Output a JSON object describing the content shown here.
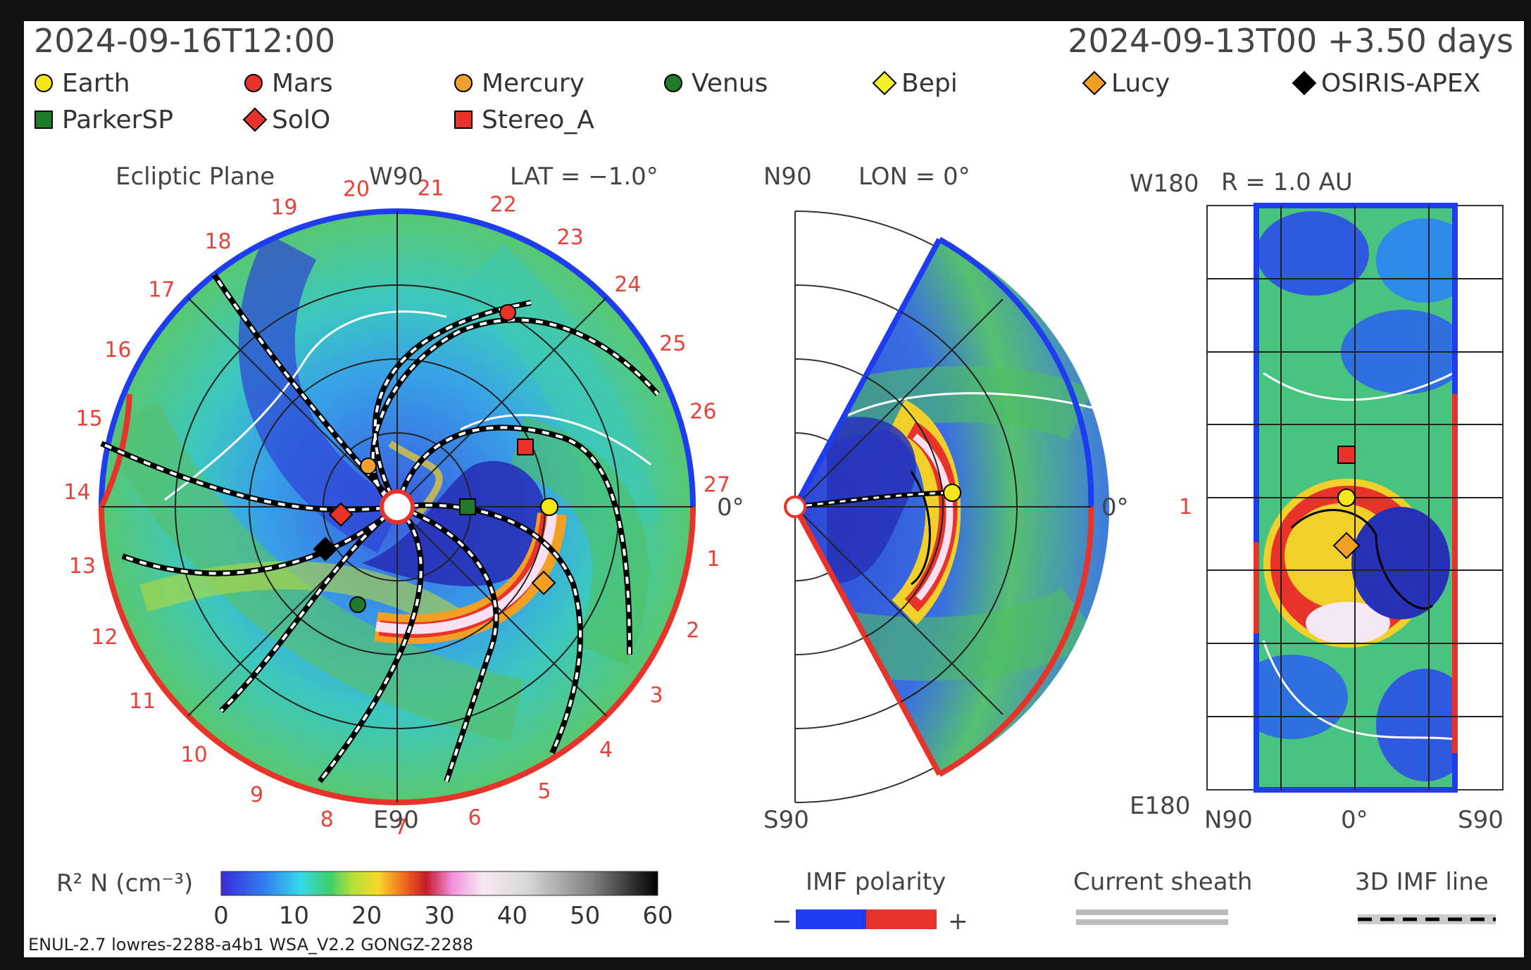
{
  "header": {
    "datetime": "2024-09-16T12:00",
    "run_info": "2024-09-13T00 +3.50 days"
  },
  "legend": {
    "items": [
      {
        "label": "Earth",
        "marker": "circle",
        "color": "#f5e51b"
      },
      {
        "label": "Mars",
        "marker": "circle",
        "color": "#e8332a"
      },
      {
        "label": "Mercury",
        "marker": "circle",
        "color": "#f0a030"
      },
      {
        "label": "Venus",
        "marker": "circle",
        "color": "#1f7a2a"
      },
      {
        "label": "Bepi",
        "marker": "diamond",
        "color": "#f7ee2a"
      },
      {
        "label": "Lucy",
        "marker": "diamond",
        "color": "#f2a023"
      },
      {
        "label": "OSIRIS-APEX",
        "marker": "diamond",
        "color": "#000000"
      },
      {
        "label": "ParkerSP",
        "marker": "square",
        "color": "#1f7a2a"
      },
      {
        "label": "SolO",
        "marker": "diamond",
        "color": "#e8332a"
      },
      {
        "label": "Stereo_A",
        "marker": "square",
        "color": "#e8332a"
      }
    ]
  },
  "panel1": {
    "title": "Ecliptic Plane",
    "lat": "LAT = −1.0°",
    "w90": "W90",
    "e90": "E90",
    "zero": "0°",
    "day_labels": [
      "27",
      "1",
      "2",
      "3",
      "4",
      "5",
      "6",
      "7",
      "8",
      "9",
      "10",
      "11",
      "12",
      "13",
      "14",
      "15",
      "16",
      "17",
      "18",
      "19",
      "20",
      "21",
      "22",
      "23",
      "24",
      "25",
      "26"
    ]
  },
  "panel2": {
    "n90": "N90",
    "lon": "LON = 0°",
    "s90": "S90",
    "zero": "0°"
  },
  "panel3": {
    "r": "R = 1.0 AU",
    "w180": "W180",
    "e180": "E180",
    "n90": "N90",
    "zero": "0°",
    "s90": "S90",
    "one": "1"
  },
  "colorbar": {
    "label": "R² N (cm⁻³)",
    "ticks": [
      "0",
      "10",
      "20",
      "30",
      "40",
      "50",
      "60"
    ],
    "min": 0,
    "max": 60
  },
  "imf": {
    "title": "IMF polarity",
    "minus": "−",
    "plus": "+",
    "negative_color": "#1e3cf0",
    "positive_color": "#e8332a"
  },
  "sheath": {
    "title": "Current sheath"
  },
  "imfline": {
    "title": "3D IMF line"
  },
  "footer": "ENUL-2.7 lowres-2288-a4b1 WSA_V2.2 GONGZ-2288"
}
